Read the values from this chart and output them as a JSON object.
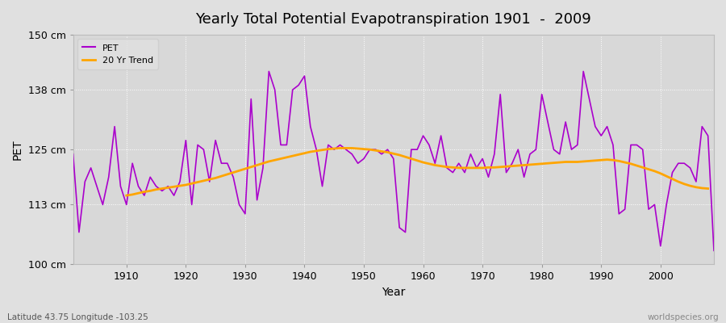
{
  "title": "Yearly Total Potential Evapotranspiration 1901  -  2009",
  "xlabel": "Year",
  "ylabel": "PET",
  "bottom_left_label": "Latitude 43.75 Longitude -103.25",
  "bottom_right_label": "worldspecies.org",
  "ylim": [
    100,
    150
  ],
  "yticks": [
    100,
    113,
    125,
    138,
    150
  ],
  "ytick_labels": [
    "100 cm",
    "113 cm",
    "125 cm",
    "138 cm",
    "150 cm"
  ],
  "xlim": [
    1901,
    2009
  ],
  "xticks": [
    1910,
    1920,
    1930,
    1940,
    1950,
    1960,
    1970,
    1980,
    1990,
    2000
  ],
  "pet_color": "#AA00CC",
  "trend_color": "#FFA500",
  "fig_bg_color": "#E0E0E0",
  "plot_bg_color": "#D8D8D8",
  "legend_labels": [
    "PET",
    "20 Yr Trend"
  ],
  "pet_linewidth": 1.2,
  "trend_linewidth": 2.0,
  "title_fontsize": 13,
  "figsize": [
    9.0,
    4.0
  ],
  "dpi": 100,
  "pet_data": {
    "years": [
      1901,
      1902,
      1903,
      1904,
      1905,
      1906,
      1907,
      1908,
      1909,
      1910,
      1911,
      1912,
      1913,
      1914,
      1915,
      1916,
      1917,
      1918,
      1919,
      1920,
      1921,
      1922,
      1923,
      1924,
      1925,
      1926,
      1927,
      1928,
      1929,
      1930,
      1931,
      1932,
      1933,
      1934,
      1935,
      1936,
      1937,
      1938,
      1939,
      1940,
      1941,
      1942,
      1943,
      1944,
      1945,
      1946,
      1947,
      1948,
      1949,
      1950,
      1951,
      1952,
      1953,
      1954,
      1955,
      1956,
      1957,
      1958,
      1959,
      1960,
      1961,
      1962,
      1963,
      1964,
      1965,
      1966,
      1967,
      1968,
      1969,
      1970,
      1971,
      1972,
      1973,
      1974,
      1975,
      1976,
      1977,
      1978,
      1979,
      1980,
      1981,
      1982,
      1983,
      1984,
      1985,
      1986,
      1987,
      1988,
      1989,
      1990,
      1991,
      1992,
      1993,
      1994,
      1995,
      1996,
      1997,
      1998,
      1999,
      2000,
      2001,
      2002,
      2003,
      2004,
      2005,
      2006,
      2007,
      2008,
      2009
    ],
    "values": [
      124,
      107,
      118,
      121,
      117,
      113,
      119,
      130,
      117,
      113,
      122,
      117,
      115,
      119,
      117,
      116,
      117,
      115,
      118,
      127,
      113,
      126,
      125,
      118,
      127,
      122,
      122,
      119,
      113,
      111,
      136,
      114,
      121,
      142,
      138,
      126,
      126,
      138,
      139,
      141,
      130,
      125,
      117,
      126,
      125,
      126,
      125,
      124,
      122,
      123,
      125,
      125,
      124,
      125,
      123,
      108,
      107,
      125,
      125,
      128,
      126,
      122,
      128,
      121,
      120,
      122,
      120,
      124,
      121,
      123,
      119,
      124,
      137,
      120,
      122,
      125,
      119,
      124,
      125,
      137,
      131,
      125,
      124,
      131,
      125,
      126,
      142,
      136,
      130,
      128,
      130,
      126,
      111,
      112,
      126,
      126,
      125,
      112,
      113,
      104,
      113,
      120,
      122,
      122,
      121,
      118,
      130,
      128,
      103
    ]
  },
  "trend_data": {
    "years": [
      1910,
      1911,
      1912,
      1913,
      1914,
      1915,
      1916,
      1917,
      1918,
      1919,
      1920,
      1921,
      1922,
      1923,
      1924,
      1925,
      1926,
      1927,
      1928,
      1929,
      1930,
      1931,
      1932,
      1933,
      1934,
      1935,
      1936,
      1937,
      1938,
      1939,
      1940,
      1941,
      1942,
      1943,
      1944,
      1945,
      1946,
      1947,
      1948,
      1949,
      1950,
      1951,
      1952,
      1953,
      1954,
      1955,
      1956,
      1957,
      1958,
      1959,
      1960,
      1961,
      1962,
      1963,
      1964,
      1965,
      1966,
      1967,
      1968,
      1969,
      1970,
      1971,
      1972,
      1973,
      1974,
      1975,
      1976,
      1977,
      1978,
      1979,
      1980,
      1981,
      1982,
      1983,
      1984,
      1985,
      1986,
      1987,
      1988,
      1989,
      1990,
      1991,
      1992,
      1993,
      1994,
      1995,
      1996,
      1997,
      1998,
      1999,
      2000,
      2001,
      2002,
      2003,
      2004,
      2005,
      2006,
      2007,
      2008
    ],
    "values": [
      115.0,
      115.2,
      115.5,
      115.8,
      116.0,
      116.3,
      116.5,
      116.7,
      116.9,
      117.1,
      117.3,
      117.6,
      117.9,
      118.2,
      118.5,
      118.8,
      119.2,
      119.6,
      120.0,
      120.4,
      120.8,
      121.2,
      121.6,
      122.0,
      122.4,
      122.7,
      123.0,
      123.3,
      123.6,
      123.9,
      124.2,
      124.5,
      124.7,
      124.9,
      125.1,
      125.2,
      125.3,
      125.3,
      125.3,
      125.2,
      125.1,
      125.0,
      124.8,
      124.6,
      124.4,
      124.1,
      123.8,
      123.4,
      123.0,
      122.6,
      122.2,
      121.9,
      121.6,
      121.4,
      121.2,
      121.1,
      121.0,
      121.0,
      121.0,
      121.0,
      121.0,
      121.1,
      121.1,
      121.2,
      121.3,
      121.4,
      121.5,
      121.6,
      121.7,
      121.8,
      121.9,
      122.0,
      122.1,
      122.2,
      122.3,
      122.3,
      122.3,
      122.4,
      122.5,
      122.6,
      122.7,
      122.8,
      122.7,
      122.5,
      122.2,
      121.9,
      121.5,
      121.1,
      120.7,
      120.3,
      119.8,
      119.2,
      118.6,
      118.0,
      117.5,
      117.1,
      116.8,
      116.6,
      116.5
    ]
  }
}
